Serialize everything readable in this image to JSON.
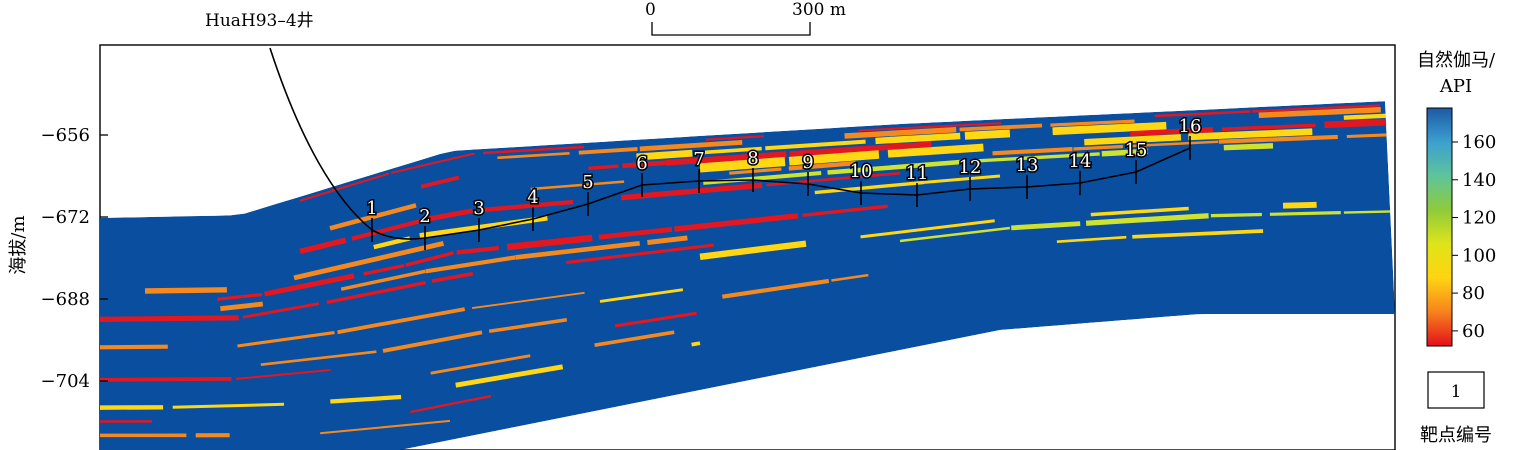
{
  "well_name": "HuaH93–4井",
  "scale_bar": {
    "start_label": "0",
    "end_label": "300 m"
  },
  "y_axis": {
    "label": "海拔/m",
    "ticks": [
      -656,
      -672,
      -688,
      -704
    ]
  },
  "colorbar": {
    "title_line1": "自然伽马/",
    "title_line2": "API",
    "ticks": [
      60,
      80,
      100,
      120,
      140,
      160
    ],
    "range": [
      52,
      178
    ],
    "colors": [
      "#e3101b",
      "#f6821d",
      "#ffd410",
      "#dfe41a",
      "#8fcb3a",
      "#5fc49a",
      "#3c9fd0",
      "#1c5aa5"
    ]
  },
  "legend": {
    "box_label": "1",
    "caption": "靶点编号"
  },
  "target_points": [
    {
      "label": "1"
    },
    {
      "label": "2"
    },
    {
      "label": "3"
    },
    {
      "label": "4"
    },
    {
      "label": "5"
    },
    {
      "label": "6"
    },
    {
      "label": "7"
    },
    {
      "label": "8"
    },
    {
      "label": "9"
    },
    {
      "label": "10"
    },
    {
      "label": "11"
    },
    {
      "label": "12"
    },
    {
      "label": "13"
    },
    {
      "label": "14"
    },
    {
      "label": "15"
    },
    {
      "label": "16"
    }
  ],
  "colors": {
    "mudstone_blue": "#0a4ea0",
    "red": "#e3171f",
    "orange": "#f6891e",
    "yellow": "#ffd713",
    "light_green": "#cde330",
    "trajectory": "#000000"
  }
}
